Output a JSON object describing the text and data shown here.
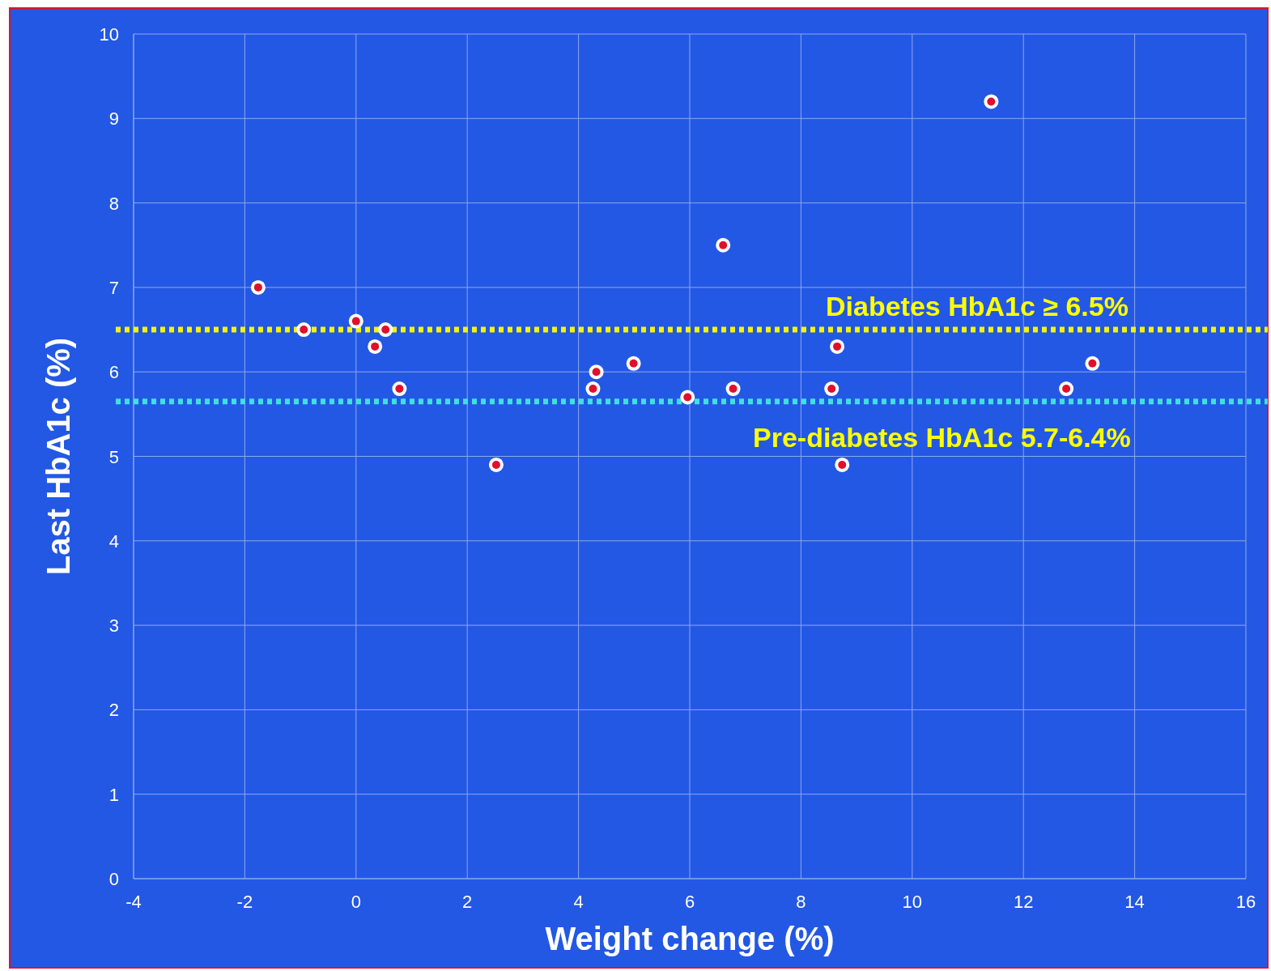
{
  "chart_data": {
    "type": "scatter",
    "xlabel": "Weight change (%)",
    "ylabel": "Last HbA1c (%)",
    "x": [
      -1.76,
      -0.94,
      0.0,
      0.53,
      0.34,
      0.78,
      2.52,
      4.26,
      4.32,
      4.99,
      5.96,
      6.6,
      6.78,
      8.55,
      8.65,
      8.74,
      11.42,
      12.77,
      13.24
    ],
    "series": [
      {
        "color": "#e0102a",
        "values": [
          7.0,
          6.5,
          6.6,
          6.5,
          6.3,
          5.8,
          4.9,
          5.8,
          6.0,
          6.1,
          5.7,
          7.5,
          5.8,
          5.8,
          6.3,
          4.9,
          9.2,
          5.8,
          6.1
        ]
      }
    ],
    "xlim": [
      -4,
      16
    ],
    "xticks": [
      -4,
      -2,
      0,
      2,
      4,
      6,
      8,
      10,
      12,
      14,
      16
    ],
    "ylim": [
      0,
      10
    ],
    "yticks": [
      0,
      1,
      2,
      3,
      4,
      5,
      6,
      7,
      8,
      9,
      10
    ],
    "grid": true,
    "marker": "circle",
    "ref_lines": [
      {
        "axis": "y",
        "value": 6.5,
        "label": "Diabetes HbA1c ≥ 6.5%",
        "color": "#f5f500",
        "line_style": "dotted"
      },
      {
        "axis": "y",
        "value": 5.65,
        "label": "Pre-diabetes HbA1c 5.7-6.4%",
        "color": "#40e0e0",
        "line_style": "dotted"
      }
    ]
  }
}
